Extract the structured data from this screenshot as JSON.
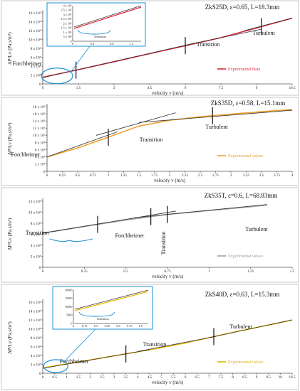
{
  "chart_data": [
    {
      "type": "line",
      "title": "ZkS25D, ε=0.65, L=18.3mm",
      "xlabel": "velocity v (m/s)",
      "ylabel": "ΔP/Lv (Pa.s/m²)",
      "xlim": [
        0,
        10.5
      ],
      "ylim": [
        0,
        16
      ],
      "x_ticks": [
        "0",
        "1.5",
        "3",
        "4.5",
        "6",
        "7.5",
        "9",
        "10.5"
      ],
      "y_ticks": [
        "0",
        "2 x 10⁵",
        "4 x 10⁵",
        "6 x 10⁵",
        "8 x 10⁵",
        "10 x 10⁵",
        "12 x 10⁵",
        "14 x 10⁵",
        "16 x 10⁵"
      ],
      "legend": "Experimental Data",
      "legend_color": "#e0263c",
      "regimes": [
        "Forchheimer",
        "Transition",
        "Turbulent"
      ],
      "series": [
        {
          "color": "#e0263c",
          "x": [
            0,
            1.5,
            3,
            4.5,
            6,
            7.5,
            9,
            10.5
          ],
          "y": [
            1.5,
            3.2,
            5.0,
            6.8,
            8.6,
            10.4,
            12.6,
            14.8
          ]
        }
      ],
      "fit_lines": [
        {
          "x": [
            0,
            6.5
          ],
          "y": [
            1.4,
            9.3
          ]
        },
        {
          "x": [
            6.0,
            9.2
          ],
          "y": [
            8.7,
            12.3
          ]
        },
        {
          "x": [
            8.5,
            10.5
          ],
          "y": [
            12.0,
            14.8
          ]
        }
      ],
      "markers_x": [
        1.4,
        6.0,
        9.2
      ],
      "inset": {
        "x_ticks": [
          "0",
          "0.4",
          "0.8",
          "1.2"
        ],
        "y_ticks": [
          "0",
          "5 x 10⁴",
          "1 x 10⁵",
          "1.5 x 10⁵",
          "2 x 10⁵",
          "2.5 x 10⁵",
          "3 x 10⁵",
          "3.5 x 10⁵",
          "4 x 10⁵"
        ],
        "label": "Transition",
        "xlim": [
          0,
          1.4
        ],
        "ylim": [
          0,
          4
        ]
      }
    },
    {
      "type": "line",
      "title": "ZkS35D, ε=0.58, L=15.1mm",
      "xlabel": "velocity v (m/s)",
      "ylabel": "ΔP/Lv (Pa.s/m²)",
      "xlim": [
        0,
        4
      ],
      "ylim": [
        0,
        18
      ],
      "x_ticks": [
        "0",
        "0.25",
        "0.5",
        "0.75",
        "1",
        "1.25",
        "1.5",
        "1.75",
        "2",
        "2.25",
        "2.5",
        "2.75",
        "3",
        "3.25",
        "3.5",
        "3.75",
        "4"
      ],
      "y_ticks": [
        "0",
        "2 x 10⁵",
        "4 x 10⁵",
        "6 x 10⁵",
        "8 x 10⁵",
        "10 x 10⁵",
        "12 x 10⁵",
        "14 x 10⁵",
        "16 x 10⁵",
        "18 x 10⁵"
      ],
      "legend": "Experimental values",
      "legend_color": "#f0a030",
      "regimes": [
        "Forchheimer",
        "Transition",
        "Turbulent"
      ],
      "series": [
        {
          "color": "#f0a030",
          "x": [
            0,
            0.5,
            1,
            1.5,
            2,
            2.5,
            3,
            3.5,
            4
          ],
          "y": [
            4.0,
            6.5,
            9.5,
            12.6,
            14.2,
            15.2,
            15.9,
            16.6,
            17.2
          ]
        }
      ],
      "fit_lines": [
        {
          "x": [
            0,
            1.15
          ],
          "y": [
            4.0,
            11.0
          ]
        },
        {
          "x": [
            0.8,
            2.1
          ],
          "y": [
            10.0,
            16.3
          ]
        },
        {
          "x": [
            1.5,
            4
          ],
          "y": [
            13.6,
            17.0
          ]
        }
      ],
      "markers_x": [
        1.0,
        2.7
      ]
    },
    {
      "type": "line",
      "title": "ZkS35T, ε=0.6, L=68.83mm",
      "xlabel": "velocity v (m/s)",
      "ylabel": "ΔP/Lv (Pa.s/m²)",
      "xlim": [
        0,
        1.5
      ],
      "ylim": [
        0,
        12
      ],
      "x_ticks": [
        "0",
        "0.25",
        "0.5",
        "0.75",
        "1",
        "1.25",
        "1.5"
      ],
      "y_ticks": [
        "0",
        "2 x 10⁵",
        "4 x 10⁵",
        "6 x 10⁵",
        "8 x 10⁵",
        "10 x 10⁵",
        "12 x 10⁵"
      ],
      "legend": "Experimental values",
      "legend_color": "#a0a0a0",
      "regimes": [
        "Transition",
        "Forchheimer",
        "Transition",
        "Turbulent"
      ],
      "series": [
        {
          "color": "#a0a0a0",
          "x": [
            0,
            0.25,
            0.5,
            0.75,
            1.0,
            1.25,
            1.35
          ],
          "y": [
            6.2,
            7.4,
            8.6,
            9.6,
            10.3,
            11.0,
            11.3
          ]
        }
      ],
      "fit_lines": [
        {
          "x": [
            0,
            0.8
          ],
          "y": [
            6.2,
            10.2
          ]
        },
        {
          "x": [
            0.55,
            1.35
          ],
          "y": [
            9.0,
            11.4
          ]
        }
      ],
      "markers_x": [
        0.33,
        0.65,
        0.75
      ]
    },
    {
      "type": "line",
      "title": "ZkS40D, ε=0.63, L=15.3mm",
      "xlabel": "velocity v (m/s)",
      "ylabel": "ΔP/Lv (Pa.s/m²)",
      "xlim": [
        0,
        10.5
      ],
      "ylim": [
        0,
        16
      ],
      "x_ticks": [
        "0",
        "0.5",
        "1",
        "1.5",
        "2",
        "2.5",
        "3",
        "3.5",
        "4",
        "4.5",
        "5",
        "5.5",
        "6",
        "6.5",
        "7",
        "7.5",
        "8",
        "8.5",
        "9",
        "9.5",
        "10",
        "10.5"
      ],
      "y_ticks": [
        "0",
        "2 x 10⁵",
        "4 x 10⁵",
        "6 x 10⁵",
        "8 x 10⁵",
        "10 x 10⁵",
        "12 x 10⁵",
        "14 x 10⁵",
        "16 x 10⁵"
      ],
      "legend": "Experimental values",
      "legend_color": "#e8b400",
      "regimes": [
        "Forchheimer",
        "Transition",
        "Turbulent"
      ],
      "series": [
        {
          "color": "#e8b400",
          "x": [
            0,
            1,
            2,
            3,
            4,
            5,
            6,
            7,
            8,
            9,
            10,
            10.5
          ],
          "y": [
            1.2,
            2.1,
            3.0,
            3.9,
            4.8,
            5.8,
            6.8,
            8.0,
            9.2,
            10.3,
            11.4,
            12.0
          ]
        }
      ],
      "fit_lines": [
        {
          "x": [
            0,
            4.5
          ],
          "y": [
            1.1,
            5.3
          ]
        },
        {
          "x": [
            4.0,
            7.3
          ],
          "y": [
            4.9,
            8.3
          ]
        },
        {
          "x": [
            7.0,
            10.5
          ],
          "y": [
            8.0,
            12.0
          ]
        }
      ],
      "markers_x": [
        3.5,
        7.2
      ],
      "inset": {
        "x_ticks": [
          "0",
          "0.15",
          "0.3",
          "0.45",
          "0.6",
          "0.75",
          "0.9"
        ],
        "y_ticks": [
          "0",
          "5000",
          "10000",
          "15000",
          "20000"
        ],
        "label": "Transition",
        "xlim": [
          0,
          1.0
        ],
        "ylim": [
          0,
          22000
        ]
      }
    }
  ]
}
